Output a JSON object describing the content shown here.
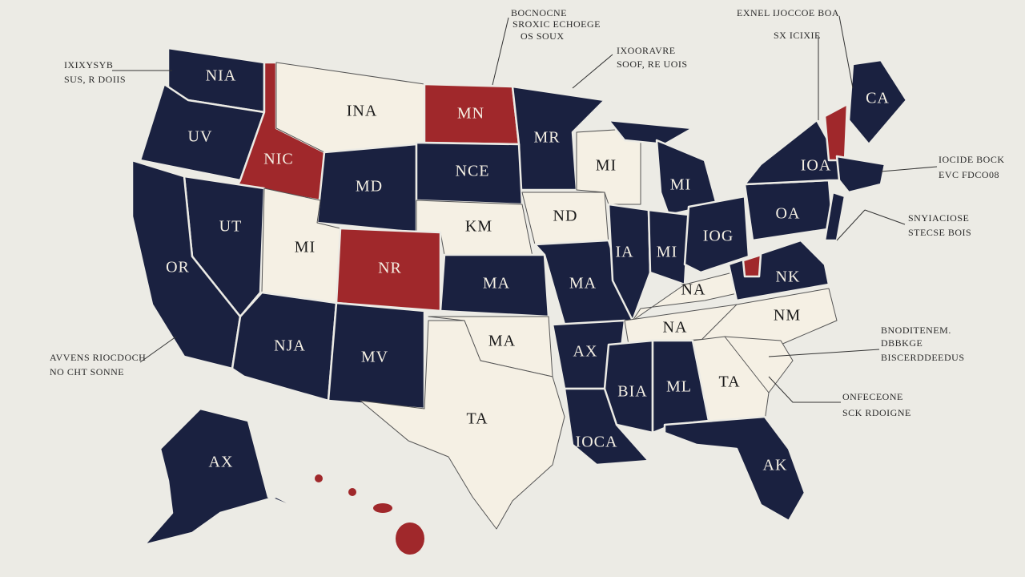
{
  "states": [
    {
      "label": "NIA"
    },
    {
      "label": "UV"
    },
    {
      "label": "NIC"
    },
    {
      "label": "INA"
    },
    {
      "label": "MN"
    },
    {
      "label": "MR"
    },
    {
      "label": "MD"
    },
    {
      "label": "NCE"
    },
    {
      "label": "UT"
    },
    {
      "label": "OR"
    },
    {
      "label": "MI"
    },
    {
      "label": "NR"
    },
    {
      "label": "KM"
    },
    {
      "label": "ND"
    },
    {
      "label": "MI"
    },
    {
      "label": "MI"
    },
    {
      "label": "MA"
    },
    {
      "label": "MA"
    },
    {
      "label": "IA"
    },
    {
      "label": "MI"
    },
    {
      "label": "IOG"
    },
    {
      "label": "OA"
    },
    {
      "label": "IOA"
    },
    {
      "label": "CA"
    },
    {
      "label": "NJA"
    },
    {
      "label": "MV"
    },
    {
      "label": "MA"
    },
    {
      "label": "AX"
    },
    {
      "label": "NA"
    },
    {
      "label": "NK"
    },
    {
      "label": "NA"
    },
    {
      "label": "NM"
    },
    {
      "label": "TA"
    },
    {
      "label": "BIA"
    },
    {
      "label": "ML"
    },
    {
      "label": "TA"
    },
    {
      "label": "IOCA"
    },
    {
      "label": "AK"
    },
    {
      "label": "AX"
    }
  ],
  "annotations": [
    {
      "lines": [
        "BOCNOCNE",
        "SROXIC ECHOEGE",
        "OS SOUX"
      ]
    },
    {
      "lines": [
        "IXOORAVRE",
        "SOOF, RE UOIS"
      ]
    },
    {
      "lines": [
        "EXNEL IJOCCOE BOA",
        "SX ICIXIE"
      ]
    },
    {
      "lines": [
        "IXIXYSYB",
        "SUS, R DOIIS"
      ]
    },
    {
      "lines": [
        "IOCIDE BOCK",
        "EVC FDCO08"
      ]
    },
    {
      "lines": [
        "SNYIACIOSE",
        "STECSE BOIS"
      ]
    },
    {
      "lines": [
        "BNODITENEM.",
        "DBBKGE",
        "BISCERDDEEDUS"
      ]
    },
    {
      "lines": [
        "ONFECEONE",
        "SCK RDOIGNE"
      ]
    },
    {
      "lines": [
        "AVVENS RIOCDOCH",
        "NO CHT SONNE"
      ]
    }
  ]
}
